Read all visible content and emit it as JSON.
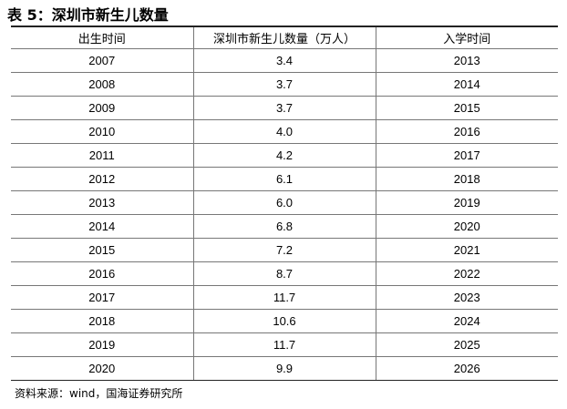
{
  "header": {
    "title": "表 5：深圳市新生儿数量"
  },
  "table": {
    "columns": [
      "出生时间",
      "深圳市新生儿数量（万人）",
      "入学时间"
    ],
    "rows": [
      [
        "2007",
        "3.4",
        "2013"
      ],
      [
        "2008",
        "3.7",
        "2014"
      ],
      [
        "2009",
        "3.7",
        "2015"
      ],
      [
        "2010",
        "4.0",
        "2016"
      ],
      [
        "2011",
        "4.2",
        "2017"
      ],
      [
        "2012",
        "6.1",
        "2018"
      ],
      [
        "2013",
        "6.0",
        "2019"
      ],
      [
        "2014",
        "6.8",
        "2020"
      ],
      [
        "2015",
        "7.2",
        "2021"
      ],
      [
        "2016",
        "8.7",
        "2022"
      ],
      [
        "2017",
        "11.7",
        "2023"
      ],
      [
        "2018",
        "10.6",
        "2024"
      ],
      [
        "2019",
        "11.7",
        "2025"
      ],
      [
        "2020",
        "9.9",
        "2026"
      ]
    ]
  },
  "footer": {
    "source": "资料来源：wind，国海证券研究所"
  }
}
